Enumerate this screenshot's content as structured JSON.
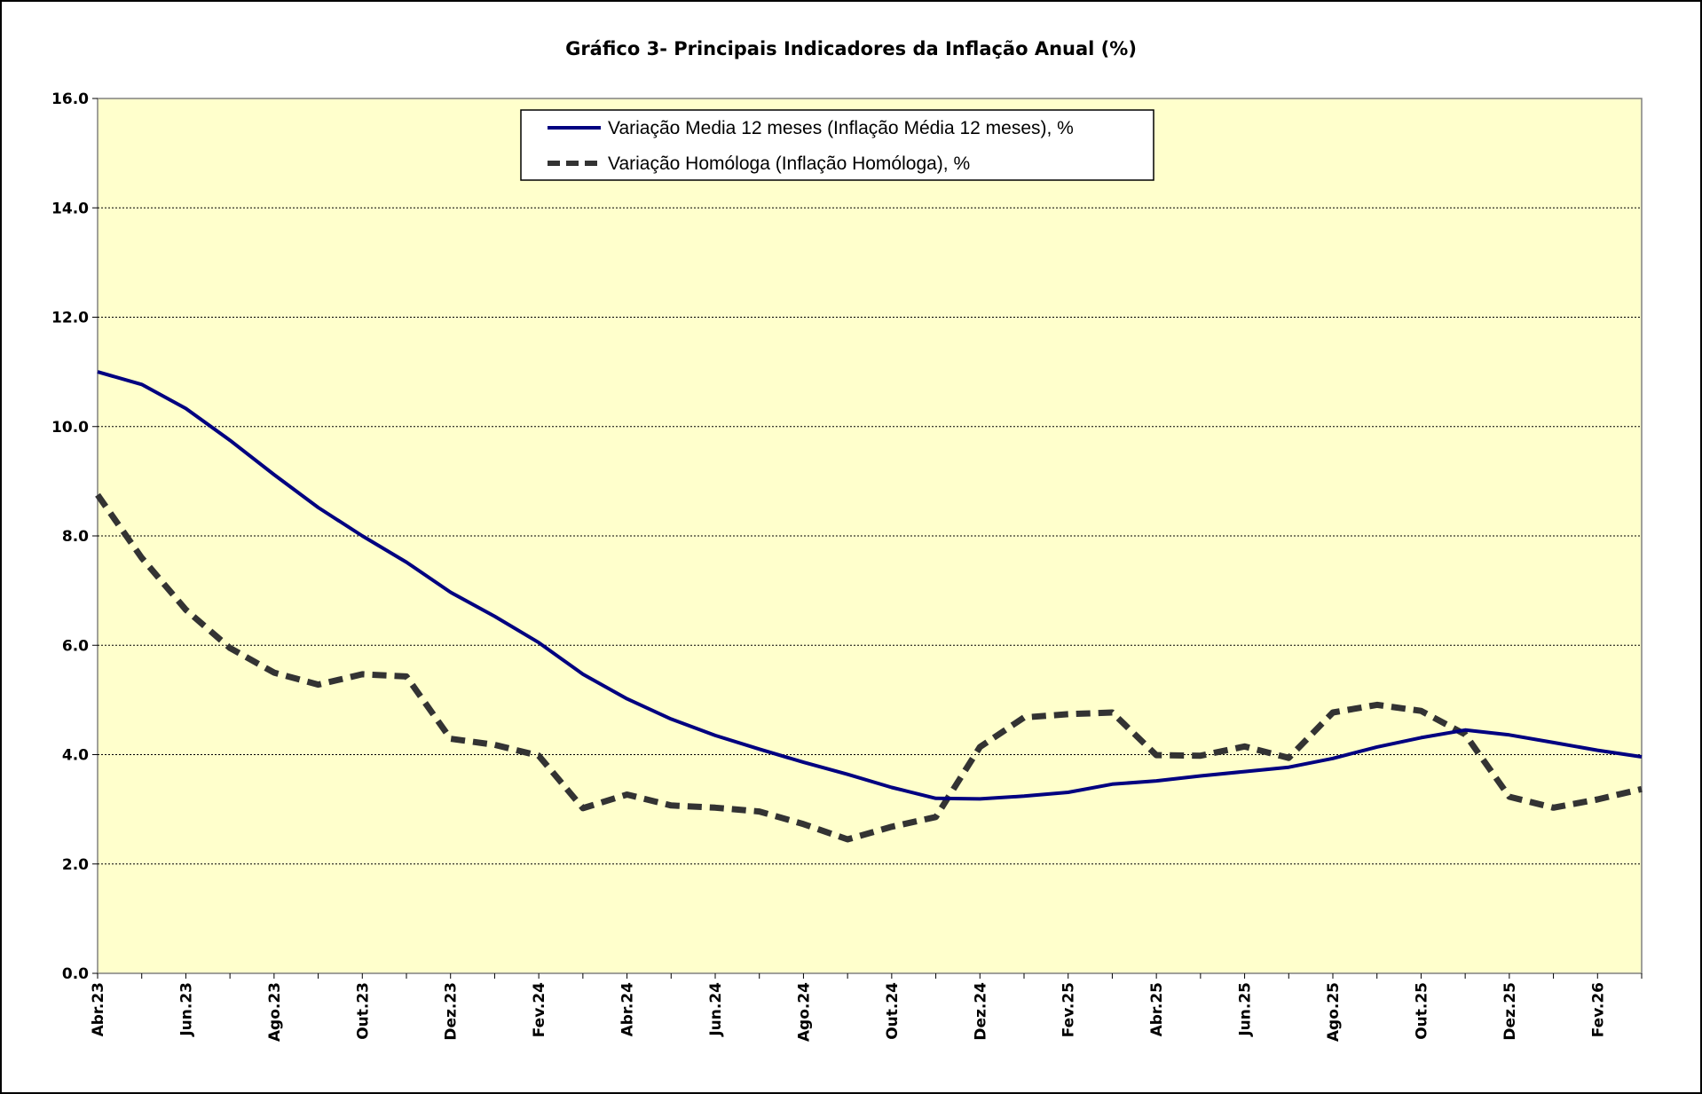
{
  "chart_data": {
    "type": "line",
    "title": "Gráfico 3- Principais Indicadores da Inflação Anual (%)",
    "xlabel": "",
    "ylabel": "",
    "ylim": [
      0,
      16
    ],
    "yticks": [
      "0.0",
      "2.0",
      "4.0",
      "6.0",
      "8.0",
      "10.0",
      "12.0",
      "14.0",
      "16.0"
    ],
    "grid": true,
    "legend_position": "top-center",
    "categories": [
      "Abr.23",
      "Mai.23",
      "Jun.23",
      "Jul.23",
      "Ago.23",
      "Set.23",
      "Out.23",
      "Nov.23",
      "Dez.23",
      "Jan.24",
      "Fev.24",
      "Mar.24",
      "Abr.24",
      "Mai.24",
      "Jun.24",
      "Jul.24",
      "Ago.24",
      "Set.24",
      "Out.24",
      "Nov.24",
      "Dez.24",
      "Jan.25",
      "Fev.25",
      "Mar.25",
      "Abr.25",
      "Mai.25",
      "Jun.25",
      "Jul.25",
      "Ago.25",
      "Set.25",
      "Out.25",
      "Nov.25",
      "Dez.25",
      "Jan.26",
      "Fev.26",
      "Mar.26"
    ],
    "xtick_labels": [
      "Abr.23",
      "Jun.23",
      "Ago.23",
      "Out.23",
      "Dez.23",
      "Fev.24",
      "Abr.24",
      "Jun.24",
      "Ago.24",
      "Out.24",
      "Dez.24",
      "Fev.25",
      "Abr.25",
      "Jun.25",
      "Ago.25",
      "Out.25",
      "Dez.25",
      "Fev.26"
    ],
    "series": [
      {
        "name": "Variação Media 12 meses (Inflação Média 12 meses), %",
        "color": "#000080",
        "style": "solid",
        "values": [
          11.0,
          10.77,
          10.33,
          9.75,
          9.12,
          8.52,
          8.0,
          7.52,
          6.97,
          6.53,
          6.05,
          5.47,
          5.02,
          4.65,
          4.35,
          4.1,
          3.86,
          3.64,
          3.4,
          3.2,
          3.19,
          3.24,
          3.31,
          3.46,
          3.52,
          3.61,
          3.69,
          3.77,
          3.93,
          4.14,
          4.31,
          4.45,
          4.36,
          4.22,
          4.08,
          3.96
        ]
      },
      {
        "name": "Variação Homóloga (Inflação Homóloga), %",
        "color": "#333333",
        "style": "dashed",
        "values": [
          8.75,
          7.6,
          6.65,
          5.95,
          5.5,
          5.28,
          5.47,
          5.43,
          4.29,
          4.18,
          3.98,
          3.02,
          3.27,
          3.07,
          3.03,
          2.96,
          2.73,
          2.45,
          2.68,
          2.86,
          4.14,
          4.68,
          4.74,
          4.77,
          3.99,
          3.98,
          4.15,
          3.94,
          4.77,
          4.91,
          4.8,
          4.37,
          3.23,
          3.03,
          3.18,
          3.37
        ]
      }
    ],
    "plot_background": "#FFFFCC"
  }
}
